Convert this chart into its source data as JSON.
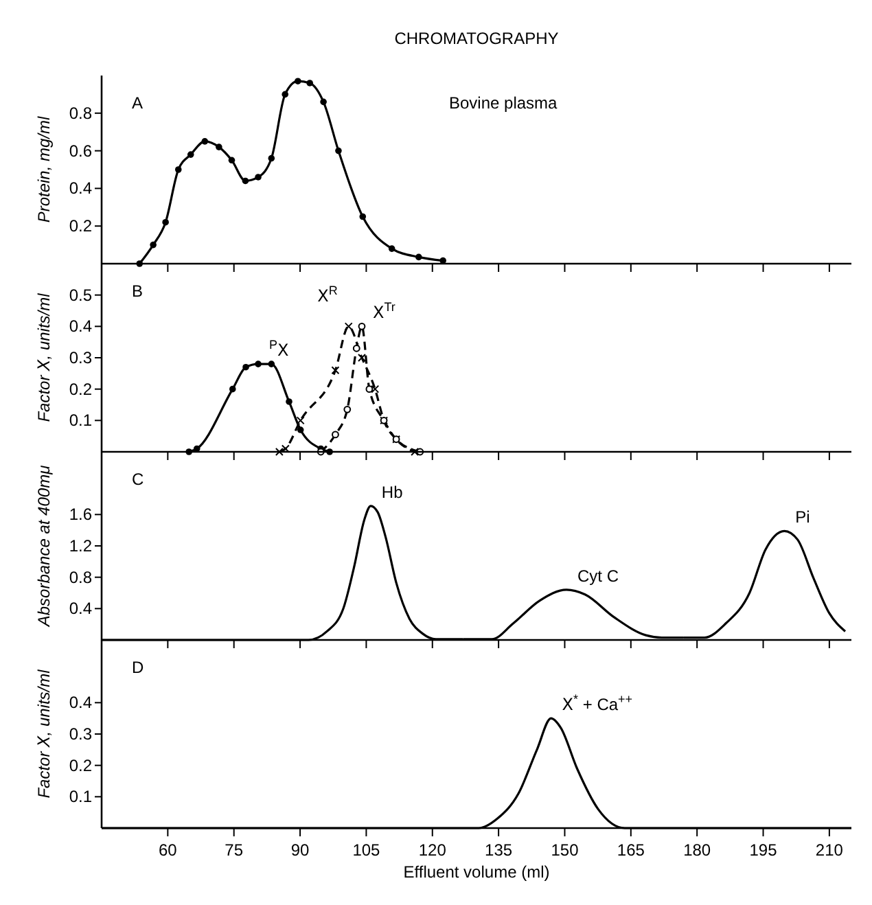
{
  "chart_data": [
    {
      "type": "line",
      "title": "CHROMATOGRAPHY",
      "ylabel": "Protein, mg/ml",
      "xlim": [
        45,
        215
      ],
      "xticks": [
        60,
        75,
        90,
        105,
        120,
        135,
        150,
        165,
        180,
        195,
        210
      ],
      "ylim": [
        0,
        1.0
      ],
      "yticks": [
        0.2,
        0.4,
        0.6,
        0.8
      ],
      "tick_labels": "y",
      "marker": "circle",
      "line_style": "solid",
      "annotations": [
        "A",
        "Bovine plasma"
      ],
      "series": [
        {
          "color": "#000000",
          "x": [
            53.6,
            56.7,
            59.5,
            62.4,
            65.2,
            68.4,
            71.6,
            74.5,
            77.6,
            80.5,
            83.5,
            86.6,
            89.5,
            92.2,
            95.3,
            98.7,
            104.2,
            110.8,
            116.9,
            122.4
          ],
          "values": [
            0,
            0.1,
            0.22,
            0.5,
            0.58,
            0.65,
            0.62,
            0.55,
            0.44,
            0.46,
            0.56,
            0.9,
            0.97,
            0.96,
            0.86,
            0.6,
            0.25,
            0.08,
            0.035,
            0.016
          ]
        }
      ]
    },
    {
      "type": "line",
      "ylabel": "Factor Ⅹ, units/ml",
      "xlim": [
        45,
        215
      ],
      "xticks": [
        60,
        75,
        90,
        105,
        120,
        135,
        150,
        165,
        180,
        195,
        210
      ],
      "ylim": [
        0,
        0.6
      ],
      "yticks": [
        0.1,
        0.2,
        0.3,
        0.4,
        0.5
      ],
      "tick_labels": "y",
      "annotations": [
        "B"
      ],
      "series": [
        {
          "name": "$^{P}$Ⅹ",
          "color": "#000000",
          "marker": "circle",
          "line_style": "solid",
          "x": [
            64.8,
            66.6,
            74.7,
            77.7,
            80.5,
            83.5,
            87.5,
            90.1,
            94.7,
            96.7
          ],
          "values": [
            0,
            0.01,
            0.2,
            0.27,
            0.28,
            0.28,
            0.16,
            0.07,
            0.01,
            0
          ]
        },
        {
          "name": "Ⅹ$^{R}$",
          "color": "#000000",
          "marker": "cross",
          "line_style": "dashed",
          "x": [
            85.3,
            86.7,
            90.1,
            98.0,
            101.0,
            104.0,
            107.0,
            109.0,
            111.8,
            116.0
          ],
          "values": [
            0,
            0.01,
            0.1,
            0.26,
            0.4,
            0.3,
            0.2,
            0.1,
            0.04,
            0
          ]
        },
        {
          "name": "Ⅹ$^{Tr}$",
          "color": "#000000",
          "marker": "circle_open",
          "line_style": "dashed",
          "x": [
            94.7,
            98.0,
            100.7,
            102.8,
            104.0,
            105.7,
            109.0,
            111.8,
            117.2
          ],
          "values": [
            0,
            0.055,
            0.135,
            0.33,
            0.4,
            0.2,
            0.1,
            0.04,
            0
          ]
        }
      ]
    },
    {
      "type": "line",
      "ylabel": "Absorbance at 400mμ",
      "xlim": [
        45,
        215
      ],
      "xticks": [
        60,
        75,
        90,
        105,
        120,
        135,
        150,
        165,
        180,
        195,
        210
      ],
      "ylim": [
        0,
        2.4
      ],
      "yticks": [
        0.4,
        0.8,
        1.2,
        1.6
      ],
      "tick_labels": "y",
      "marker": "none",
      "line_style": "solid",
      "annotations": [
        "C"
      ],
      "series": [
        {
          "name": "Hb",
          "color": "#000000",
          "x": [
            45,
            91.9,
            96.1,
            99.8,
            102.2,
            104.6,
            106.0,
            107.6,
            109.4,
            111.8,
            114.8,
            117.8,
            120.8,
            127
          ],
          "values": [
            0,
            0,
            0.11,
            0.4,
            0.92,
            1.54,
            1.71,
            1.63,
            1.31,
            0.73,
            0.27,
            0.08,
            0.01,
            0.01
          ]
        },
        {
          "name": "Cyt C",
          "color": "#000000",
          "x": [
            127,
            133.5,
            138.3,
            144.3,
            150.4,
            154.6,
            161.2,
            168.4,
            172.0,
            177
          ],
          "values": [
            0.01,
            0.01,
            0.21,
            0.5,
            0.64,
            0.58,
            0.29,
            0.06,
            0.03,
            0.03
          ]
        },
        {
          "name": "Pi",
          "color": "#000000",
          "x": [
            177,
            181.7,
            186.5,
            191.9,
            195.5,
            199.8,
            202.8,
            206.4,
            210.0,
            213.6
          ],
          "values": [
            0.03,
            0.03,
            0.21,
            0.6,
            1.15,
            1.39,
            1.28,
            0.79,
            0.34,
            0.11
          ]
        }
      ]
    },
    {
      "type": "line",
      "xlabel": "Effluent volume (ml)",
      "ylabel": "Factor Ⅹ, units/ml",
      "xlim": [
        45,
        215
      ],
      "xticks": [
        60,
        75,
        90,
        105,
        120,
        135,
        150,
        165,
        180,
        195,
        210
      ],
      "ylim": [
        0,
        0.6
      ],
      "yticks": [
        0.1,
        0.2,
        0.3,
        0.4
      ],
      "marker": "none",
      "line_style": "solid",
      "annotations": [
        "D"
      ],
      "series": [
        {
          "name": "Ⅹ$^{*}$ + Ca$^{++}$",
          "color": "#000000",
          "x": [
            45,
            130.5,
            134.7,
            139.5,
            143.7,
            146.9,
            149.1,
            152.8,
            157.6,
            163.6,
            215
          ],
          "values": [
            0,
            0,
            0.03,
            0.11,
            0.25,
            0.35,
            0.32,
            0.19,
            0.06,
            0,
            0
          ]
        }
      ]
    }
  ]
}
